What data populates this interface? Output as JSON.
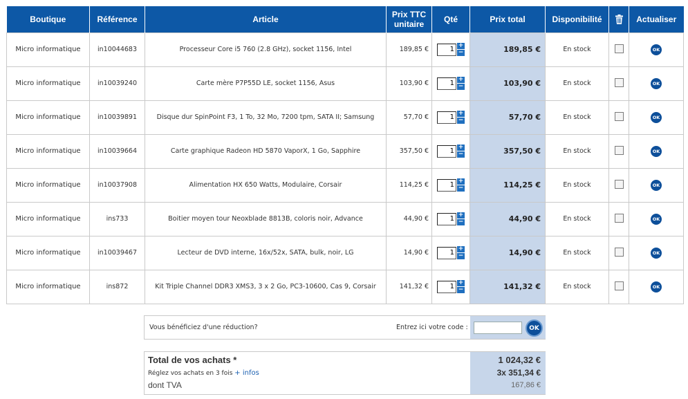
{
  "table": {
    "headers": {
      "boutique": "Boutique",
      "reference": "Référence",
      "article": "Article",
      "prix_unitaire_line1": "Prix TTC",
      "prix_unitaire_line2": "unitaire",
      "qte": "Qté",
      "prix_total": "Prix total",
      "disponibilite": "Disponibilité",
      "delete_icon": "trash-icon",
      "actualiser": "Actualiser"
    },
    "rows": [
      {
        "boutique": "Micro informatique",
        "reference": "in10044683",
        "article": "Processeur Core i5 760 (2.8 GHz), socket 1156, Intel",
        "prix_unitaire": "189,85 €",
        "qte": "1",
        "prix_total": "189,85 €",
        "disponibilite": "En stock",
        "update_label": "OK"
      },
      {
        "boutique": "Micro informatique",
        "reference": "in10039240",
        "article": "Carte mère P7P55D LE, socket 1156, Asus",
        "prix_unitaire": "103,90 €",
        "qte": "1",
        "prix_total": "103,90 €",
        "disponibilite": "En stock",
        "update_label": "OK"
      },
      {
        "boutique": "Micro informatique",
        "reference": "in10039891",
        "article": "Disque dur SpinPoint F3, 1 To, 32 Mo, 7200 tpm, SATA II; Samsung",
        "prix_unitaire": "57,70 €",
        "qte": "1",
        "prix_total": "57,70 €",
        "disponibilite": "En stock",
        "update_label": "OK"
      },
      {
        "boutique": "Micro informatique",
        "reference": "in10039664",
        "article": "Carte graphique Radeon HD 5870 VaporX, 1 Go, Sapphire",
        "prix_unitaire": "357,50 €",
        "qte": "1",
        "prix_total": "357,50 €",
        "disponibilite": "En stock",
        "update_label": "OK"
      },
      {
        "boutique": "Micro informatique",
        "reference": "in10037908",
        "article": "Alimentation HX 650 Watts, Modulaire, Corsair",
        "prix_unitaire": "114,25 €",
        "qte": "1",
        "prix_total": "114,25 €",
        "disponibilite": "En stock",
        "update_label": "OK"
      },
      {
        "boutique": "Micro informatique",
        "reference": "ins733",
        "article": "Boitier moyen tour Neoxblade 8813B, coloris noir, Advance",
        "prix_unitaire": "44,90 €",
        "qte": "1",
        "prix_total": "44,90 €",
        "disponibilite": "En stock",
        "update_label": "OK"
      },
      {
        "boutique": "Micro informatique",
        "reference": "in10039467",
        "article": "Lecteur de DVD interne, 16x/52x, SATA, bulk, noir, LG",
        "prix_unitaire": "14,90 €",
        "qte": "1",
        "prix_total": "14,90 €",
        "disponibilite": "En stock",
        "update_label": "OK"
      },
      {
        "boutique": "Micro informatique",
        "reference": "ins872",
        "article": "Kit Triple Channel DDR3 XMS3, 3 x 2 Go, PC3-10600, Cas 9, Corsair",
        "prix_unitaire": "141,32 €",
        "qte": "1",
        "prix_total": "141,32 €",
        "disponibilite": "En stock",
        "update_label": "OK"
      }
    ]
  },
  "stepper": {
    "plus": "+",
    "minus": "−"
  },
  "promo": {
    "question": "Vous bénéficiez d'une réduction?",
    "code_label": "Entrez ici votre code :",
    "code_value": "",
    "ok_label": "OK"
  },
  "totals": {
    "title": "Total de vos achats *",
    "value": "1 024,32 €",
    "installment_text": "Réglez vos achats en 3 fois",
    "installment_link": "+ infos",
    "installment_value": "3x  351,34 €",
    "tva_label": "dont TVA",
    "tva_value": "167,86 €"
  },
  "colors": {
    "header_bg": "#0d58a6",
    "total_column_bg": "#c7d6ea",
    "ok_button": "#0d4f9a",
    "link": "#1a5fb0"
  }
}
